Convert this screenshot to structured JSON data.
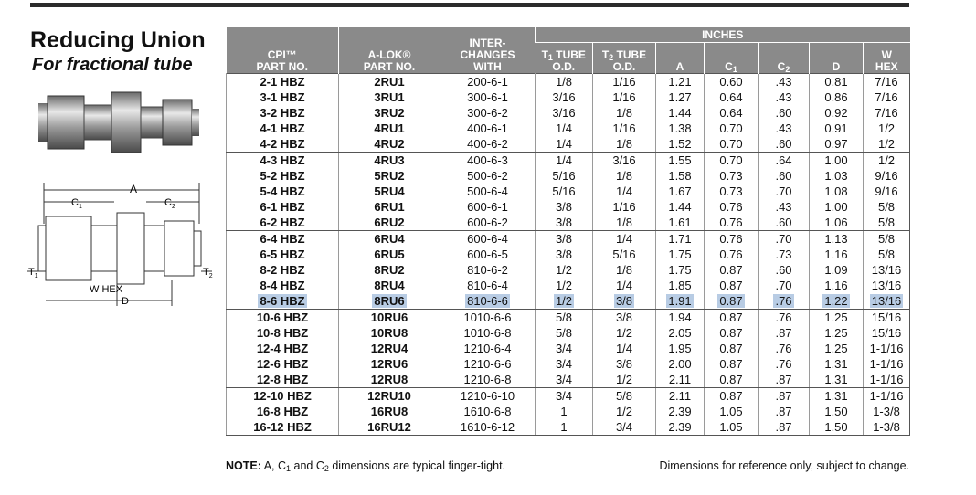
{
  "header": {
    "title": "Reducing Union",
    "subtitle": "For fractional tube"
  },
  "diagram": {
    "dim_a": "A",
    "dim_c": "C",
    "sub_1": "1",
    "sub_2": "2",
    "dim_t": "T",
    "w_hex": "W HEX",
    "dim_d": "D"
  },
  "table": {
    "group_header": "INCHES",
    "columns": [
      {
        "line1": "CPI™",
        "line2": "PART NO."
      },
      {
        "line1": "A-LOK®",
        "line2": "PART NO."
      },
      {
        "line1": "INTER-",
        "line2": "CHANGES",
        "line3": "WITH"
      },
      {
        "line1": "T",
        "sub": "1",
        "rest": "TUBE",
        "line2": "O.D."
      },
      {
        "line1": "T",
        "sub": "2",
        "rest": "TUBE",
        "line2": "O.D."
      },
      {
        "line1": "A"
      },
      {
        "line1": "C",
        "sub": "1"
      },
      {
        "line1": "C",
        "sub": "2"
      },
      {
        "line1": "D"
      },
      {
        "line1": "W",
        "line2": "HEX"
      }
    ],
    "groups": [
      [
        [
          "2-1 HBZ",
          "2RU1",
          "200-6-1",
          "1/8",
          "1/16",
          "1.21",
          "0.60",
          ".43",
          "0.81",
          "7/16"
        ],
        [
          "3-1 HBZ",
          "3RU1",
          "300-6-1",
          "3/16",
          "1/16",
          "1.27",
          "0.64",
          ".43",
          "0.86",
          "7/16"
        ],
        [
          "3-2 HBZ",
          "3RU2",
          "300-6-2",
          "3/16",
          "1/8",
          "1.44",
          "0.64",
          ".60",
          "0.92",
          "7/16"
        ],
        [
          "4-1 HBZ",
          "4RU1",
          "400-6-1",
          "1/4",
          "1/16",
          "1.38",
          "0.70",
          ".43",
          "0.91",
          "1/2"
        ],
        [
          "4-2 HBZ",
          "4RU2",
          "400-6-2",
          "1/4",
          "1/8",
          "1.52",
          "0.70",
          ".60",
          "0.97",
          "1/2"
        ]
      ],
      [
        [
          "4-3 HBZ",
          "4RU3",
          "400-6-3",
          "1/4",
          "3/16",
          "1.55",
          "0.70",
          ".64",
          "1.00",
          "1/2"
        ],
        [
          "5-2 HBZ",
          "5RU2",
          "500-6-2",
          "5/16",
          "1/8",
          "1.58",
          "0.73",
          ".60",
          "1.03",
          "9/16"
        ],
        [
          "5-4 HBZ",
          "5RU4",
          "500-6-4",
          "5/16",
          "1/4",
          "1.67",
          "0.73",
          ".70",
          "1.08",
          "9/16"
        ],
        [
          "6-1 HBZ",
          "6RU1",
          "600-6-1",
          "3/8",
          "1/16",
          "1.44",
          "0.76",
          ".43",
          "1.00",
          "5/8"
        ],
        [
          "6-2 HBZ",
          "6RU2",
          "600-6-2",
          "3/8",
          "1/8",
          "1.61",
          "0.76",
          ".60",
          "1.06",
          "5/8"
        ]
      ],
      [
        [
          "6-4 HBZ",
          "6RU4",
          "600-6-4",
          "3/8",
          "1/4",
          "1.71",
          "0.76",
          ".70",
          "1.13",
          "5/8"
        ],
        [
          "6-5 HBZ",
          "6RU5",
          "600-6-5",
          "3/8",
          "5/16",
          "1.75",
          "0.76",
          ".73",
          "1.16",
          "5/8"
        ],
        [
          "8-2 HBZ",
          "8RU2",
          "810-6-2",
          "1/2",
          "1/8",
          "1.75",
          "0.87",
          ".60",
          "1.09",
          "13/16"
        ],
        [
          "8-4 HBZ",
          "8RU4",
          "810-6-4",
          "1/2",
          "1/4",
          "1.85",
          "0.87",
          ".70",
          "1.16",
          "13/16"
        ],
        [
          "8-6 HBZ",
          "8RU6",
          "810-6-6",
          "1/2",
          "3/8",
          "1.91",
          "0.87",
          ".76",
          "1.22",
          "13/16"
        ]
      ],
      [
        [
          "10-6 HBZ",
          "10RU6",
          "1010-6-6",
          "5/8",
          "3/8",
          "1.94",
          "0.87",
          ".76",
          "1.25",
          "15/16"
        ],
        [
          "10-8 HBZ",
          "10RU8",
          "1010-6-8",
          "5/8",
          "1/2",
          "2.05",
          "0.87",
          ".87",
          "1.25",
          "15/16"
        ],
        [
          "12-4 HBZ",
          "12RU4",
          "1210-6-4",
          "3/4",
          "1/4",
          "1.95",
          "0.87",
          ".76",
          "1.25",
          "1-1/16"
        ],
        [
          "12-6 HBZ",
          "12RU6",
          "1210-6-6",
          "3/4",
          "3/8",
          "2.00",
          "0.87",
          ".76",
          "1.31",
          "1-1/16"
        ],
        [
          "12-8 HBZ",
          "12RU8",
          "1210-6-8",
          "3/4",
          "1/2",
          "2.11",
          "0.87",
          ".87",
          "1.31",
          "1-1/16"
        ]
      ],
      [
        [
          "12-10 HBZ",
          "12RU10",
          "1210-6-10",
          "3/4",
          "5/8",
          "2.11",
          "0.87",
          ".87",
          "1.31",
          "1-1/16"
        ],
        [
          "16-8 HBZ",
          "16RU8",
          "1610-6-8",
          "1",
          "1/2",
          "2.39",
          "1.05",
          ".87",
          "1.50",
          "1-3/8"
        ],
        [
          "16-12 HBZ",
          "16RU12",
          "1610-6-12",
          "1",
          "3/4",
          "2.39",
          "1.05",
          ".87",
          "1.50",
          "1-3/8"
        ]
      ]
    ],
    "highlighted_row": {
      "group": 2,
      "row": 4
    }
  },
  "note": {
    "label": "NOTE:",
    "p1": "A, C",
    "s1": "1",
    "p2": "and C",
    "s2": "2",
    "p3": "dimensions are typical finger-tight."
  },
  "disclaimer": "Dimensions for reference only, subject to change."
}
